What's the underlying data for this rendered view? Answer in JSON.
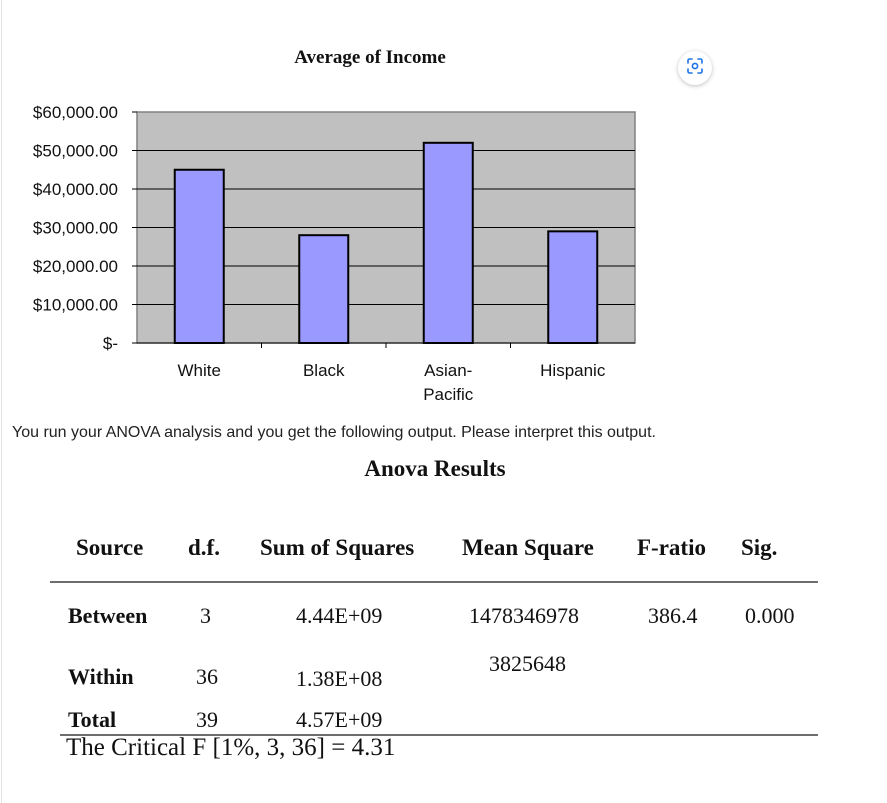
{
  "chart_data": {
    "type": "bar",
    "title": "Average of Income",
    "categories": [
      "White",
      "Black",
      "Asian-\nPacific",
      "Hispanic"
    ],
    "values": [
      45000,
      28000,
      52000,
      29000
    ],
    "ylim": [
      0,
      60000
    ],
    "y_ticks": [
      {
        "value": 60000,
        "label": "$60,000.00"
      },
      {
        "value": 50000,
        "label": "$50,000.00"
      },
      {
        "value": 40000,
        "label": "$40,000.00"
      },
      {
        "value": 30000,
        "label": "$30,000.00"
      },
      {
        "value": 20000,
        "label": "$20,000.00"
      },
      {
        "value": 10000,
        "label": "$10,000.00"
      },
      {
        "value": 0,
        "label": "$-"
      }
    ],
    "grid": true,
    "colors": {
      "bar": "#9999ff",
      "bar_edge": "#000000",
      "plot_bg": "#c0c0c0"
    }
  },
  "prompt": "You run your ANOVA analysis and you get the following output. Please interpret this output.",
  "anova": {
    "title": "Anova  Results",
    "headers": {
      "source": "Source",
      "df": "d.f.",
      "ss": "Sum of Squares",
      "ms": "Mean Square",
      "f": "F-ratio",
      "sig": "Sig."
    },
    "rows": [
      {
        "source": "Between",
        "df": "3",
        "ss": "4.44E+09",
        "ms": "1478346978",
        "f": "386.4",
        "sig": "0.000"
      },
      {
        "source": "Within",
        "df": "36",
        "ss": "1.38E+08",
        "ms": "3825648",
        "f": "",
        "sig": ""
      },
      {
        "source": "Total",
        "df": "39",
        "ss": "4.57E+09",
        "ms": "",
        "f": "",
        "sig": ""
      }
    ],
    "critical": "The Critical F [1%, 3, 36] = 4.31"
  },
  "icons": {
    "lens": "google-lens-icon"
  }
}
